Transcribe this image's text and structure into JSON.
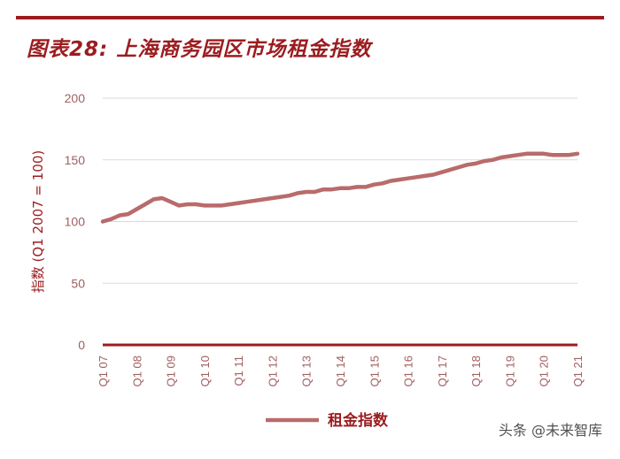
{
  "title": "图表28: 上海商务园区市场租金指数",
  "watermark": "头条 @未来智库",
  "chart_data": {
    "type": "line",
    "ylabel": "指数 (Q1 2007 = 100)",
    "ylim": [
      0,
      200
    ],
    "yticks": [
      0,
      50,
      100,
      150,
      200
    ],
    "grid": true,
    "legend_position": "bottom-center",
    "colors": {
      "series": "#b96b6b",
      "axis": "#9b1c1f",
      "grid": "#d9d9d9",
      "ticktext": "#a06060"
    },
    "xticks": [
      "Q1 07",
      "Q1 08",
      "Q1 09",
      "Q1 10",
      "Q1 11",
      "Q1 12",
      "Q1 13",
      "Q1 14",
      "Q1 15",
      "Q1 16",
      "Q1 17",
      "Q1 18",
      "Q1 19",
      "Q1 20",
      "Q1 21"
    ],
    "series": [
      {
        "name": "租金指数",
        "x": [
          2007.0,
          2007.25,
          2007.5,
          2007.75,
          2008.0,
          2008.25,
          2008.5,
          2008.75,
          2009.0,
          2009.25,
          2009.5,
          2009.75,
          2010.0,
          2010.25,
          2010.5,
          2010.75,
          2011.0,
          2011.25,
          2011.5,
          2011.75,
          2012.0,
          2012.25,
          2012.5,
          2012.75,
          2013.0,
          2013.25,
          2013.5,
          2013.75,
          2014.0,
          2014.25,
          2014.5,
          2014.75,
          2015.0,
          2015.25,
          2015.5,
          2015.75,
          2016.0,
          2016.25,
          2016.5,
          2016.75,
          2017.0,
          2017.25,
          2017.5,
          2017.75,
          2018.0,
          2018.25,
          2018.5,
          2018.75,
          2019.0,
          2019.25,
          2019.5,
          2019.75,
          2020.0,
          2020.25,
          2020.5,
          2020.75,
          2021.0
        ],
        "values": [
          100,
          102,
          105,
          106,
          110,
          114,
          118,
          119,
          116,
          113,
          114,
          114,
          113,
          113,
          113,
          114,
          115,
          116,
          117,
          118,
          119,
          120,
          121,
          123,
          124,
          124,
          126,
          126,
          127,
          127,
          128,
          128,
          130,
          131,
          133,
          134,
          135,
          136,
          137,
          138,
          140,
          142,
          144,
          146,
          147,
          149,
          150,
          152,
          153,
          154,
          155,
          155,
          155,
          154,
          154,
          154,
          155
        ]
      }
    ]
  }
}
